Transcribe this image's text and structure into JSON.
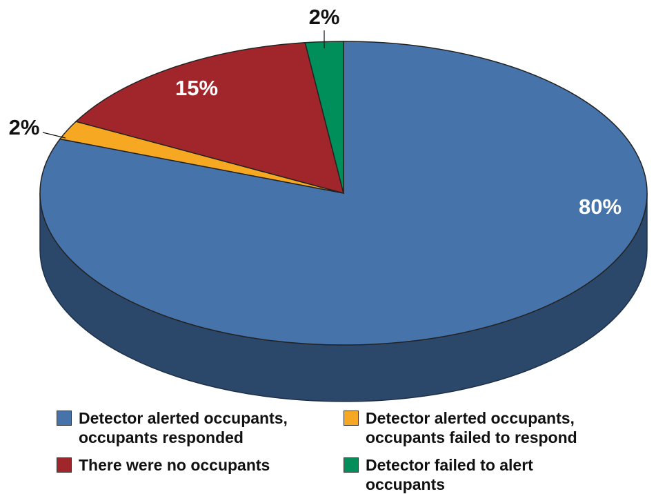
{
  "chart_data": {
    "type": "pie",
    "series": [
      {
        "name": "Detector alerted occupants, occupants responded",
        "color": "#4673a9",
        "values": [
          80
        ],
        "value_labels": [
          "80%"
        ]
      },
      {
        "name": "Detector alerted occupants, occupants failed to respond",
        "color": "#f7a823",
        "values": [
          2
        ],
        "value_labels": [
          "2%"
        ]
      },
      {
        "name": "There were no occupants",
        "color": "#a1262b",
        "values": [
          15
        ],
        "value_labels": [
          "15%"
        ]
      },
      {
        "name": "Detector failed to alert occupants",
        "color": "#008f5a",
        "values": [
          2
        ],
        "value_labels": [
          "2%"
        ]
      }
    ]
  }
}
